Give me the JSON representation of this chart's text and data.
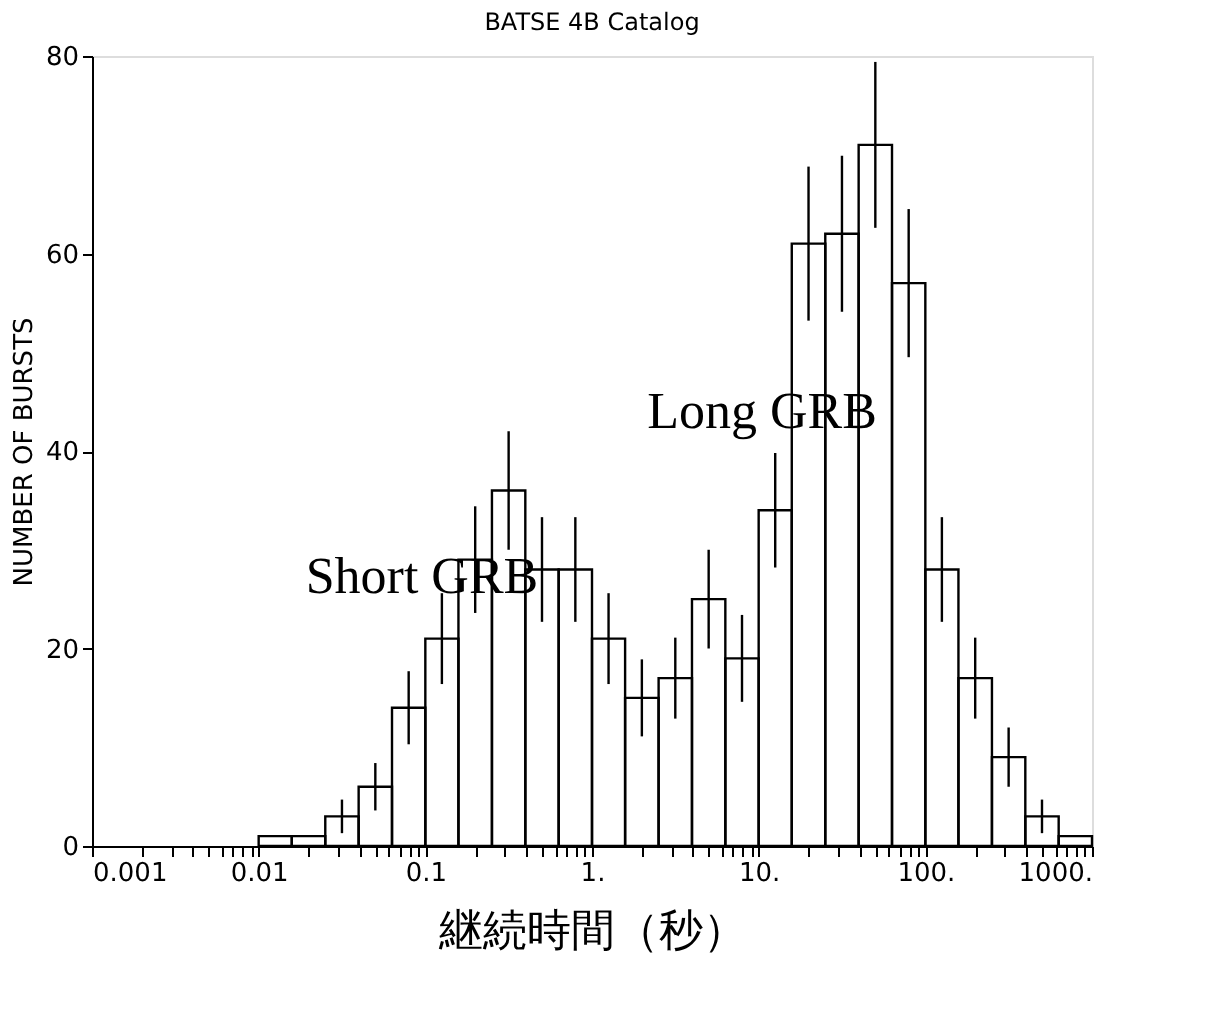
{
  "chart_data": {
    "type": "histogram",
    "title": "BATSE 4B Catalog",
    "xlabel": "継続時間（秒）",
    "ylabel": "NUMBER OF BURSTS",
    "bins": [
      0.01,
      0.0158,
      0.0251,
      0.0398,
      0.0631,
      0.1,
      0.158,
      0.251,
      0.398,
      0.631,
      1,
      1.58,
      2.51,
      3.98,
      6.31,
      10,
      15.8,
      25.1,
      39.8,
      63.1,
      100,
      158,
      251,
      398,
      631,
      1000
    ],
    "values": [
      1,
      1,
      3,
      6,
      14,
      21,
      29,
      36,
      28,
      28,
      21,
      15,
      17,
      25,
      19,
      34,
      61,
      62,
      71,
      57,
      28,
      17,
      9,
      3,
      1
    ],
    "errors": [
      null,
      null,
      1.7,
      2.4,
      3.7,
      4.6,
      5.4,
      6,
      5.3,
      5.3,
      4.6,
      3.9,
      4.1,
      5,
      4.4,
      5.8,
      7.8,
      7.9,
      8.4,
      7.5,
      5.3,
      4.1,
      3,
      1.7,
      null
    ],
    "color": "#000000",
    "log": "x",
    "grid": false,
    "xlim": [
      0.001,
      1000
    ],
    "ylim": [
      0,
      80
    ],
    "yticks": [
      0,
      20,
      40,
      60,
      80
    ],
    "xticks": [
      {
        "value": 0.001,
        "label": "0.001"
      },
      {
        "value": 0.002,
        "label": null
      },
      {
        "value": 0.003,
        "label": null
      },
      {
        "value": 0.004,
        "label": null
      },
      {
        "value": 0.005,
        "label": null
      },
      {
        "value": 0.006,
        "label": null
      },
      {
        "value": 0.007,
        "label": null
      },
      {
        "value": 0.008,
        "label": null
      },
      {
        "value": 0.009,
        "label": null
      },
      {
        "value": 0.01,
        "label": "0.01"
      },
      {
        "value": 0.02,
        "label": null
      },
      {
        "value": 0.03,
        "label": null
      },
      {
        "value": 0.04,
        "label": null
      },
      {
        "value": 0.05,
        "label": null
      },
      {
        "value": 0.06,
        "label": null
      },
      {
        "value": 0.07,
        "label": null
      },
      {
        "value": 0.08,
        "label": null
      },
      {
        "value": 0.09,
        "label": null
      },
      {
        "value": 0.1,
        "label": "0.1"
      },
      {
        "value": 0.2,
        "label": null
      },
      {
        "value": 0.3,
        "label": null
      },
      {
        "value": 0.4,
        "label": null
      },
      {
        "value": 0.5,
        "label": null
      },
      {
        "value": 0.6,
        "label": null
      },
      {
        "value": 0.7,
        "label": null
      },
      {
        "value": 0.8,
        "label": null
      },
      {
        "value": 0.9,
        "label": null
      },
      {
        "value": 1,
        "label": "1."
      },
      {
        "value": 2,
        "label": null
      },
      {
        "value": 3,
        "label": null
      },
      {
        "value": 4,
        "label": null
      },
      {
        "value": 5,
        "label": null
      },
      {
        "value": 6,
        "label": null
      },
      {
        "value": 7,
        "label": null
      },
      {
        "value": 8,
        "label": null
      },
      {
        "value": 9,
        "label": null
      },
      {
        "value": 10,
        "label": "10."
      },
      {
        "value": 20,
        "label": null
      },
      {
        "value": 30,
        "label": null
      },
      {
        "value": 40,
        "label": null
      },
      {
        "value": 50,
        "label": null
      },
      {
        "value": 60,
        "label": null
      },
      {
        "value": 70,
        "label": null
      },
      {
        "value": 80,
        "label": null
      },
      {
        "value": 90,
        "label": null
      },
      {
        "value": 100,
        "label": "100."
      },
      {
        "value": 200,
        "label": null
      },
      {
        "value": 300,
        "label": null
      },
      {
        "value": 400,
        "label": null
      },
      {
        "value": 500,
        "label": null
      },
      {
        "value": 600,
        "label": null
      },
      {
        "value": 700,
        "label": null
      },
      {
        "value": 800,
        "label": null
      },
      {
        "value": 900,
        "label": null
      },
      {
        "value": 1000,
        "label": "1000."
      }
    ],
    "annotations": [
      "Short GRB",
      "Long GRB"
    ]
  }
}
